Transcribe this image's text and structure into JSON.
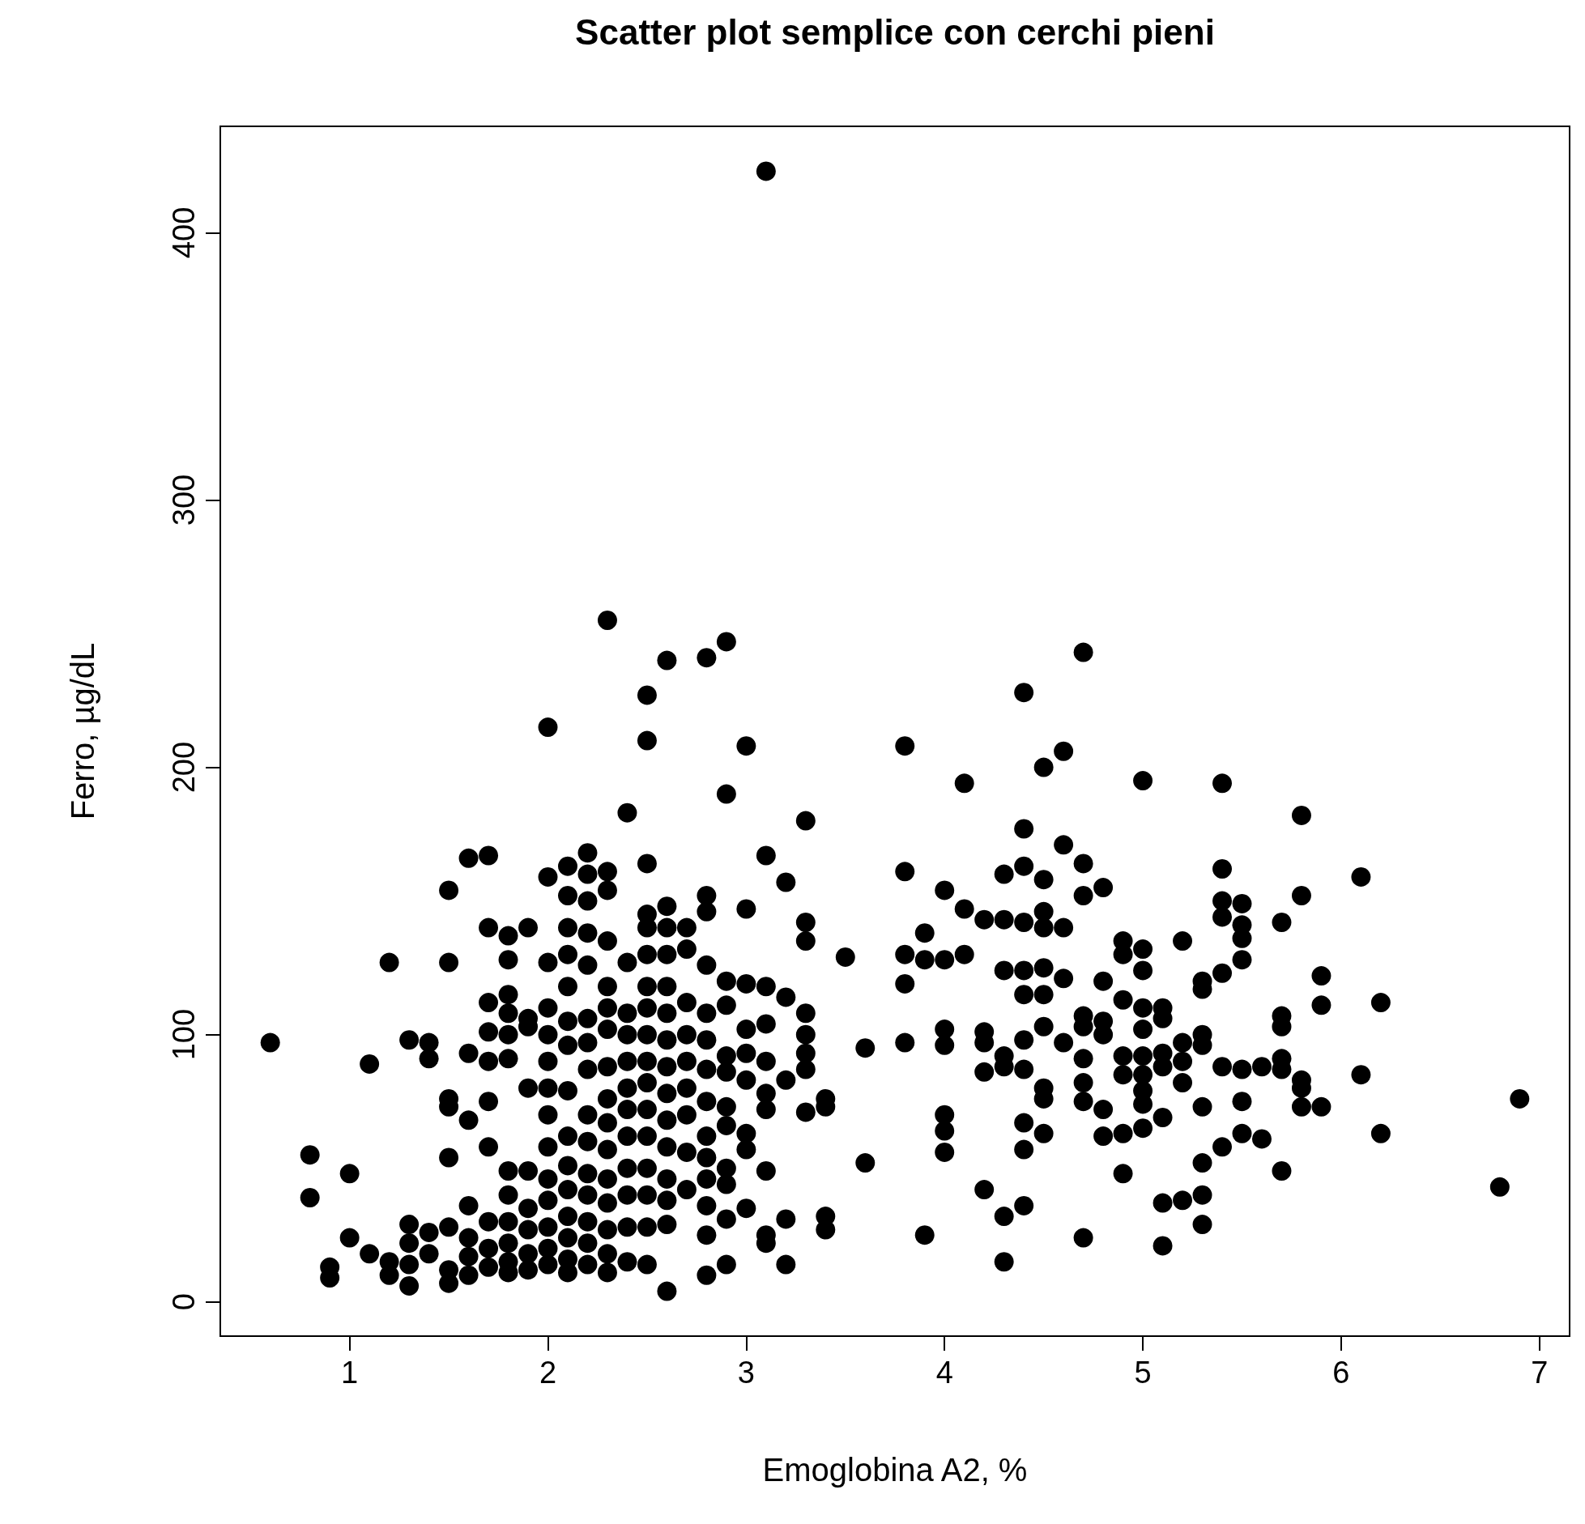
{
  "chart_data": {
    "type": "scatter",
    "title": "Scatter plot semplice con cerchi pieni",
    "xlabel": "Emoglobina A2, %",
    "ylabel": "Ferro, µg/dL",
    "marker": "circle",
    "grid": false,
    "xlim": [
      0.348,
      7.152
    ],
    "xticks": [
      1,
      2,
      3,
      4,
      5,
      6,
      7
    ],
    "ylim": [
      -12.8,
      439.8
    ],
    "yticks": [
      0,
      100,
      200,
      300,
      400
    ],
    "series": [
      {
        "color": "#000000",
        "x": [
          0.6,
          0.8,
          0.8,
          0.9,
          0.9,
          1.0,
          1.0,
          1.1,
          1.1,
          1.2,
          1.2,
          1.2,
          1.3,
          1.3,
          1.3,
          1.3,
          1.3,
          1.4,
          1.4,
          1.4,
          1.4,
          1.5,
          1.5,
          1.5,
          1.5,
          1.5,
          1.5,
          1.5,
          1.5,
          1.6,
          1.6,
          1.6,
          1.6,
          1.6,
          1.6,
          1.6,
          1.7,
          1.7,
          1.7,
          1.7,
          1.7,
          1.7,
          1.7,
          1.7,
          1.7,
          1.7,
          1.8,
          1.8,
          1.8,
          1.8,
          1.8,
          1.8,
          1.8,
          1.8,
          1.8,
          1.8,
          1.8,
          1.8,
          1.9,
          1.9,
          1.9,
          1.9,
          1.9,
          1.9,
          1.9,
          1.9,
          1.9,
          2.0,
          2.0,
          2.0,
          2.0,
          2.0,
          2.0,
          2.0,
          2.0,
          2.0,
          2.0,
          2.0,
          2.0,
          2.0,
          2.0,
          2.1,
          2.1,
          2.1,
          2.1,
          2.1,
          2.1,
          2.1,
          2.1,
          2.1,
          2.1,
          2.1,
          2.1,
          2.1,
          2.1,
          2.1,
          2.2,
          2.2,
          2.2,
          2.2,
          2.2,
          2.2,
          2.2,
          2.2,
          2.2,
          2.2,
          2.2,
          2.2,
          2.2,
          2.2,
          2.2,
          2.3,
          2.3,
          2.3,
          2.3,
          2.3,
          2.3,
          2.3,
          2.3,
          2.3,
          2.3,
          2.3,
          2.3,
          2.3,
          2.3,
          2.3,
          2.3,
          2.4,
          2.4,
          2.4,
          2.4,
          2.4,
          2.4,
          2.4,
          2.4,
          2.4,
          2.4,
          2.4,
          2.4,
          2.5,
          2.5,
          2.5,
          2.5,
          2.5,
          2.5,
          2.5,
          2.5,
          2.5,
          2.5,
          2.5,
          2.5,
          2.5,
          2.5,
          2.5,
          2.5,
          2.5,
          2.6,
          2.6,
          2.6,
          2.6,
          2.6,
          2.6,
          2.6,
          2.6,
          2.6,
          2.6,
          2.6,
          2.6,
          2.6,
          2.6,
          2.6,
          2.7,
          2.7,
          2.7,
          2.7,
          2.7,
          2.7,
          2.7,
          2.7,
          2.7,
          2.8,
          2.8,
          2.8,
          2.8,
          2.8,
          2.8,
          2.8,
          2.8,
          2.8,
          2.8,
          2.8,
          2.8,
          2.8,
          2.8,
          2.9,
          2.9,
          2.9,
          2.9,
          2.9,
          2.9,
          2.9,
          2.9,
          2.9,
          2.9,
          2.9,
          2.9,
          3.0,
          3.0,
          3.0,
          3.0,
          3.0,
          3.0,
          3.0,
          3.0,
          3.0,
          3.1,
          3.1,
          3.1,
          3.1,
          3.1,
          3.1,
          3.1,
          3.1,
          3.1,
          3.1,
          3.2,
          3.2,
          3.2,
          3.2,
          3.2,
          3.3,
          3.3,
          3.3,
          3.3,
          3.3,
          3.3,
          3.3,
          3.3,
          3.4,
          3.4,
          3.4,
          3.4,
          3.5,
          3.6,
          3.6,
          3.8,
          3.8,
          3.8,
          3.8,
          3.8,
          3.9,
          3.9,
          3.9,
          4.0,
          4.0,
          4.0,
          4.0,
          4.0,
          4.0,
          4.0,
          4.1,
          4.1,
          4.1,
          4.2,
          4.2,
          4.2,
          4.2,
          4.2,
          4.3,
          4.3,
          4.3,
          4.3,
          4.3,
          4.3,
          4.3,
          4.4,
          4.4,
          4.4,
          4.4,
          4.4,
          4.4,
          4.4,
          4.4,
          4.4,
          4.4,
          4.4,
          4.5,
          4.5,
          4.5,
          4.5,
          4.5,
          4.5,
          4.5,
          4.5,
          4.5,
          4.5,
          4.6,
          4.6,
          4.6,
          4.6,
          4.6,
          4.7,
          4.7,
          4.7,
          4.7,
          4.7,
          4.7,
          4.7,
          4.7,
          4.7,
          4.8,
          4.8,
          4.8,
          4.8,
          4.8,
          4.8,
          4.9,
          4.9,
          4.9,
          4.9,
          4.9,
          4.9,
          4.9,
          5.0,
          5.0,
          5.0,
          5.0,
          5.0,
          5.0,
          5.0,
          5.0,
          5.0,
          5.0,
          5.1,
          5.1,
          5.1,
          5.1,
          5.1,
          5.1,
          5.1,
          5.2,
          5.2,
          5.2,
          5.2,
          5.2,
          5.3,
          5.3,
          5.3,
          5.3,
          5.3,
          5.3,
          5.3,
          5.3,
          5.4,
          5.4,
          5.4,
          5.4,
          5.4,
          5.4,
          5.4,
          5.5,
          5.5,
          5.5,
          5.5,
          5.5,
          5.5,
          5.5,
          5.6,
          5.6,
          5.7,
          5.7,
          5.7,
          5.7,
          5.7,
          5.7,
          5.8,
          5.8,
          5.8,
          5.8,
          5.8,
          5.9,
          5.9,
          5.9,
          6.1,
          6.1,
          6.2,
          6.2,
          6.8,
          6.9
        ],
        "values": [
          97,
          55,
          39,
          13,
          9,
          48,
          24,
          89,
          18,
          127,
          15,
          10,
          98,
          29,
          22,
          14,
          6,
          97,
          91,
          26,
          18,
          154,
          127,
          76,
          73,
          54,
          28,
          12,
          7,
          166,
          93,
          68,
          36,
          24,
          17,
          10,
          167,
          140,
          112,
          101,
          90,
          75,
          58,
          30,
          20,
          13,
          137,
          128,
          115,
          108,
          100,
          91,
          49,
          40,
          30,
          22,
          15,
          11,
          140,
          106,
          103,
          80,
          49,
          35,
          27,
          18,
          12,
          215,
          159,
          127,
          110,
          100,
          90,
          80,
          70,
          58,
          46,
          38,
          28,
          20,
          14,
          163,
          152,
          140,
          130,
          118,
          105,
          96,
          79,
          62,
          51,
          42,
          32,
          24,
          16,
          11,
          168,
          160,
          150,
          138,
          126,
          106,
          97,
          87,
          70,
          60,
          48,
          40,
          30,
          22,
          14,
          255,
          161,
          154,
          135,
          118,
          110,
          102,
          88,
          76,
          67,
          57,
          46,
          37,
          27,
          18,
          11,
          183,
          127,
          108,
          100,
          90,
          80,
          72,
          62,
          50,
          40,
          28,
          15,
          227,
          210,
          164,
          145,
          140,
          130,
          118,
          110,
          100,
          90,
          82,
          72,
          62,
          50,
          40,
          28,
          14,
          240,
          148,
          140,
          130,
          118,
          108,
          98,
          88,
          78,
          68,
          58,
          46,
          38,
          29,
          4,
          140,
          132,
          112,
          100,
          90,
          80,
          70,
          56,
          42,
          241,
          152,
          146,
          126,
          108,
          98,
          87,
          75,
          62,
          54,
          46,
          36,
          25,
          10,
          247,
          190,
          120,
          111,
          92,
          86,
          73,
          66,
          50,
          44,
          31,
          14,
          208,
          147,
          119,
          102,
          93,
          83,
          63,
          57,
          35,
          423,
          167,
          118,
          104,
          90,
          78,
          72,
          49,
          25,
          22,
          157,
          114,
          83,
          31,
          14,
          180,
          142,
          135,
          108,
          100,
          93,
          87,
          71,
          76,
          73,
          32,
          27,
          129,
          95,
          52,
          208,
          161,
          130,
          119,
          97,
          138,
          128,
          25,
          154,
          128,
          102,
          96,
          70,
          64,
          56,
          194,
          147,
          130,
          143,
          101,
          97,
          86,
          42,
          160,
          143,
          124,
          92,
          88,
          32,
          15,
          228,
          177,
          163,
          142,
          124,
          115,
          98,
          87,
          67,
          57,
          36,
          200,
          158,
          146,
          140,
          125,
          115,
          103,
          80,
          76,
          63,
          206,
          171,
          140,
          121,
          97,
          243,
          164,
          152,
          107,
          103,
          91,
          82,
          75,
          24,
          155,
          120,
          105,
          100,
          72,
          62,
          135,
          130,
          113,
          92,
          85,
          63,
          48,
          195,
          132,
          124,
          110,
          102,
          92,
          85,
          79,
          74,
          65,
          110,
          106,
          93,
          88,
          69,
          37,
          21,
          135,
          97,
          90,
          82,
          38,
          120,
          117,
          100,
          96,
          73,
          52,
          40,
          29,
          194,
          162,
          150,
          144,
          123,
          88,
          58,
          149,
          141,
          136,
          128,
          87,
          75,
          63,
          88,
          61,
          142,
          107,
          103,
          91,
          87,
          49,
          182,
          152,
          83,
          80,
          73,
          122,
          111,
          73,
          159,
          85,
          112,
          63,
          43,
          76
        ]
      }
    ]
  }
}
